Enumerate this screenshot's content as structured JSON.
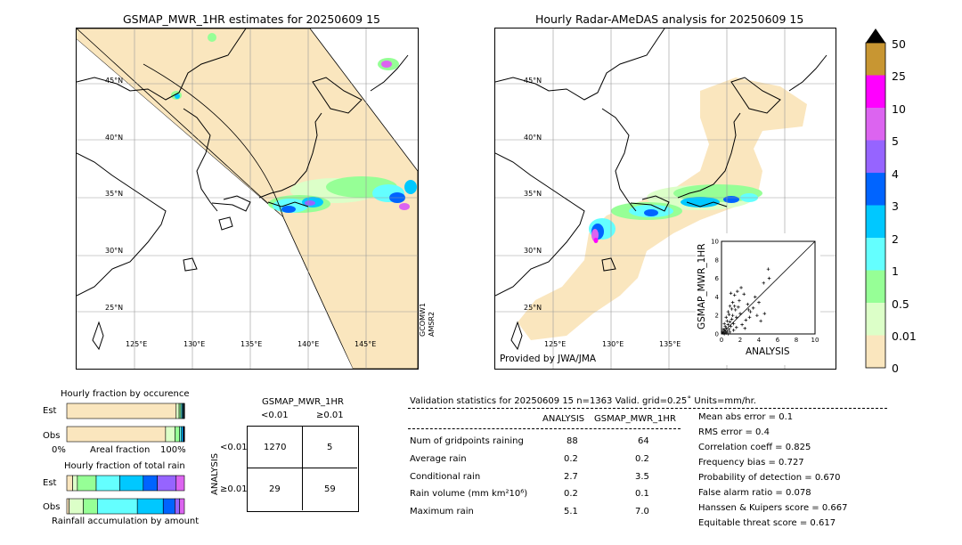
{
  "left_map": {
    "title": "GSMAP_MWR_1HR estimates for 20250609 15",
    "lat_labels": [
      "45°N",
      "40°N",
      "35°N",
      "30°N",
      "25°N"
    ],
    "lon_labels": [
      "125°E",
      "130°E",
      "135°E",
      "140°E",
      "145°E"
    ],
    "satellite_labels": [
      "GCOMW1",
      "AMSR2"
    ]
  },
  "right_map": {
    "title": "Hourly Radar-AMeDAS analysis for 20250609 15",
    "lat_labels": [
      "45°N",
      "40°N",
      "35°N",
      "30°N",
      "25°N"
    ],
    "lon_labels": [
      "125°E",
      "130°E",
      "135°E"
    ],
    "credit": "Provided by JWA/JMA"
  },
  "colorbar": {
    "labels": [
      "50",
      "25",
      "10",
      "5",
      "4",
      "3",
      "2",
      "1",
      "0.5",
      "0.01",
      "0"
    ],
    "colors": [
      "#c89632",
      "#ff00ff",
      "#dc64f0",
      "#9664ff",
      "#0064ff",
      "#00c8ff",
      "#64ffff",
      "#96ff96",
      "#dcffc8",
      "#fae6be"
    ]
  },
  "chart_data": [
    {
      "type": "scatter",
      "title": "",
      "xlabel": "ANALYSIS",
      "ylabel": "GSMAP_MWR_1HR",
      "xlim": [
        0,
        10
      ],
      "ylim": [
        0,
        10
      ],
      "x_ticks": [
        "0",
        "2",
        "4",
        "6",
        "8",
        "10"
      ],
      "y_ticks": [
        "0",
        "2",
        "4",
        "6",
        "8",
        "10"
      ],
      "reference_line": "y = x",
      "points": [
        [
          0.2,
          0.1
        ],
        [
          0.3,
          0.4
        ],
        [
          0.4,
          0.2
        ],
        [
          0.5,
          0.6
        ],
        [
          0.6,
          0.3
        ],
        [
          0.7,
          1.0
        ],
        [
          0.8,
          0.5
        ],
        [
          0.9,
          1.3
        ],
        [
          1.0,
          0.8
        ],
        [
          1.1,
          1.6
        ],
        [
          1.2,
          2.0
        ],
        [
          1.3,
          1.1
        ],
        [
          1.5,
          2.6
        ],
        [
          1.6,
          1.8
        ],
        [
          1.8,
          2.9
        ],
        [
          2.0,
          2.2
        ],
        [
          0.5,
          1.8
        ],
        [
          0.7,
          2.4
        ],
        [
          0.9,
          3.0
        ],
        [
          1.2,
          3.4
        ],
        [
          1.4,
          4.2
        ],
        [
          1.7,
          4.6
        ],
        [
          2.1,
          5.0
        ],
        [
          2.4,
          4.3
        ],
        [
          2.8,
          3.2
        ],
        [
          3.1,
          2.4
        ],
        [
          3.4,
          2.8
        ],
        [
          3.8,
          2.0
        ],
        [
          4.2,
          1.4
        ],
        [
          4.6,
          2.2
        ],
        [
          5.1,
          6.0
        ],
        [
          2.6,
          1.5
        ],
        [
          1.0,
          4.4
        ],
        [
          1.9,
          3.6
        ],
        [
          2.2,
          1.0
        ],
        [
          3.0,
          1.8
        ],
        [
          0.3,
          1.1
        ],
        [
          0.4,
          0.8
        ],
        [
          0.6,
          1.4
        ],
        [
          0.8,
          2.1
        ],
        [
          1.3,
          0.4
        ],
        [
          1.6,
          0.7
        ],
        [
          2.5,
          0.6
        ],
        [
          0.2,
          0.5
        ],
        [
          0.1,
          0.2
        ],
        [
          0.3,
          0.0
        ],
        [
          0.5,
          0.1
        ],
        [
          0.7,
          0.0
        ],
        [
          4.0,
          3.4
        ],
        [
          3.6,
          4.0
        ],
        [
          5.0,
          7.0
        ],
        [
          4.5,
          5.5
        ],
        [
          1.1,
          2.7
        ],
        [
          1.4,
          3.0
        ],
        [
          2.9,
          2.6
        ],
        [
          0.9,
          0.2
        ]
      ]
    },
    {
      "type": "bar",
      "title": "Hourly fraction by occurence",
      "xlabel": "Areal fraction",
      "x_ticks": [
        "0%",
        "100%"
      ],
      "categories": [
        "Est",
        "Obs"
      ],
      "stacked": true,
      "series": [
        {
          "color": "#fae6be",
          "values": [
            0.93,
            0.84
          ]
        },
        {
          "color": "#dcffc8",
          "values": [
            0.025,
            0.08
          ]
        },
        {
          "color": "#96ff96",
          "values": [
            0.015,
            0.04
          ]
        },
        {
          "color": "#64ffff",
          "values": [
            0.012,
            0.015
          ]
        },
        {
          "color": "#00c8ff",
          "values": [
            0.008,
            0.012
          ]
        },
        {
          "color": "#0064ff",
          "values": [
            0.005,
            0.008
          ]
        },
        {
          "color": "#9664ff",
          "values": [
            0.003,
            0.003
          ]
        },
        {
          "color": "#dc64f0",
          "values": [
            0.002,
            0.002
          ]
        }
      ]
    },
    {
      "type": "bar",
      "title": "Hourly fraction of total rain",
      "xlabel": "Rainfall accumulation by amount",
      "categories": [
        "Est",
        "Obs"
      ],
      "stacked": true,
      "series": [
        {
          "color": "#fae6be",
          "values": [
            0.05,
            0.02
          ]
        },
        {
          "color": "#dcffc8",
          "values": [
            0.04,
            0.12
          ]
        },
        {
          "color": "#96ff96",
          "values": [
            0.16,
            0.12
          ]
        },
        {
          "color": "#64ffff",
          "values": [
            0.2,
            0.34
          ]
        },
        {
          "color": "#00c8ff",
          "values": [
            0.2,
            0.22
          ]
        },
        {
          "color": "#0064ff",
          "values": [
            0.12,
            0.1
          ]
        },
        {
          "color": "#9664ff",
          "values": [
            0.16,
            0.04
          ]
        },
        {
          "color": "#dc64f0",
          "values": [
            0.07,
            0.04
          ]
        }
      ]
    },
    {
      "type": "table",
      "title": "GSMAP_MWR_1HR",
      "col_headers": [
        "<0.01",
        "≥0.01"
      ],
      "row_axis_label": "ANALYSIS",
      "row_headers": [
        "<0.01",
        "≥0.01"
      ],
      "cells": [
        [
          "1270",
          "5"
        ],
        [
          "29",
          "59"
        ]
      ]
    }
  ],
  "validation": {
    "header": "Validation statistics for 20250609 15  n=1363 Valid. grid=0.25˚ Units=mm/hr.",
    "col_headers": [
      "ANALYSIS",
      "GSMAP_MWR_1HR"
    ],
    "rows": [
      {
        "label": "Num of gridpoints raining",
        "analysis": "88",
        "gsmap": "64"
      },
      {
        "label": "Average rain",
        "analysis": "0.2",
        "gsmap": "0.2"
      },
      {
        "label": "Conditional rain",
        "analysis": "2.7",
        "gsmap": "3.5"
      },
      {
        "label": "Rain volume (mm km²10⁶)",
        "analysis": "0.2",
        "gsmap": "0.1"
      },
      {
        "label": "Maximum rain",
        "analysis": "5.1",
        "gsmap": "7.0"
      }
    ],
    "scores": [
      "Mean abs error =    0.1",
      "RMS error =    0.4",
      "Correlation coeff =  0.825",
      "Frequency bias =  0.727",
      "Probability of detection =  0.670",
      "False alarm ratio =  0.078",
      "Hanssen & Kuipers score =  0.667",
      "Equitable threat score =  0.617"
    ]
  }
}
